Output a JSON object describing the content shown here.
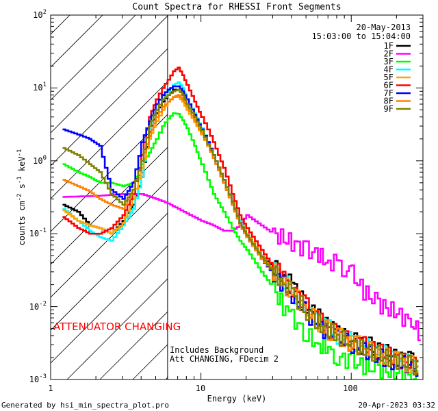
{
  "chart_data": {
    "type": "line",
    "title": "Count Spectra for RHESSI Front Segments",
    "xlabel": "Energy (keV)",
    "ylabel": "counts cm",
    "ylabel_exp1": "-2",
    "ylabel_mid": " s",
    "ylabel_exp2": "-1",
    "ylabel_end": " keV",
    "ylabel_exp3": "-1",
    "xscale": "log",
    "yscale": "log",
    "xlim": [
      1,
      300
    ],
    "ylim": [
      0.001,
      100
    ],
    "x_ticks": [
      {
        "value": 1,
        "label": "1"
      },
      {
        "value": 10,
        "label": "10"
      },
      {
        "value": 100,
        "label": "100"
      }
    ],
    "y_ticks": [
      {
        "value": 0.001,
        "base": "10",
        "exp": "-3"
      },
      {
        "value": 0.01,
        "base": "10",
        "exp": "-2"
      },
      {
        "value": 0.1,
        "base": "10",
        "exp": "-1"
      },
      {
        "value": 1,
        "base": "10",
        "exp": "0"
      },
      {
        "value": 10,
        "base": "10",
        "exp": "1"
      },
      {
        "value": 100,
        "base": "10",
        "exp": "2"
      }
    ],
    "date": "20-May-2013",
    "time_range": "15:03:00 to 15:04:00",
    "attenuator_energy": 6,
    "attenuator_label": "ATTENUATOR CHANGING",
    "note_line1": "Includes Background",
    "note_line2": "Att CHANGING, FDecim 2",
    "series": [
      {
        "name": "1F",
        "color": "#000000",
        "x": [
          1.2,
          1.5,
          1.8,
          2.1,
          2.5,
          3.0,
          3.5,
          4.0,
          4.5,
          5.0,
          5.5,
          6.0,
          6.5,
          7.0,
          7.5,
          8,
          9,
          10,
          11,
          12,
          14,
          16,
          18,
          20,
          25,
          30,
          35,
          40,
          50,
          60,
          70,
          80,
          100,
          120,
          150,
          200,
          250,
          280
        ],
        "values": [
          0.25,
          0.2,
          0.13,
          0.12,
          0.1,
          0.15,
          0.25,
          0.6,
          2.5,
          4.5,
          6.5,
          8,
          9.5,
          9.5,
          8,
          6,
          4,
          2.6,
          1.7,
          1.1,
          0.5,
          0.25,
          0.14,
          0.1,
          0.05,
          0.035,
          0.025,
          0.02,
          0.01,
          0.007,
          0.005,
          0.0045,
          0.0035,
          0.0032,
          0.0025,
          0.002,
          0.0018,
          0.0015
        ]
      },
      {
        "name": "2F",
        "color": "#ff00ff",
        "x": [
          1.2,
          2,
          3,
          4,
          5,
          6,
          7,
          8,
          10,
          12,
          14,
          16,
          18,
          20,
          25,
          30,
          40,
          50,
          60,
          70,
          80,
          90,
          100,
          120,
          150,
          200,
          250,
          290
        ],
        "values": [
          0.32,
          0.33,
          0.35,
          0.35,
          0.3,
          0.26,
          0.22,
          0.19,
          0.15,
          0.13,
          0.11,
          0.11,
          0.13,
          0.18,
          0.13,
          0.1,
          0.075,
          0.06,
          0.05,
          0.04,
          0.04,
          0.032,
          0.028,
          0.016,
          0.011,
          0.008,
          0.006,
          0.004
        ]
      },
      {
        "name": "3F",
        "color": "#00ff00",
        "x": [
          1.2,
          1.5,
          1.8,
          2.1,
          2.5,
          3.0,
          3.5,
          4.0,
          4.5,
          5.0,
          5.5,
          6.0,
          6.5,
          7.0,
          7.5,
          8,
          9,
          10,
          11,
          12,
          14,
          16,
          18,
          20,
          25,
          30,
          35,
          40,
          50,
          60,
          70,
          80,
          100,
          120,
          150,
          200,
          250,
          280
        ],
        "values": [
          0.9,
          0.7,
          0.6,
          0.5,
          0.5,
          0.45,
          0.5,
          0.9,
          1.3,
          2,
          3,
          3.8,
          4.5,
          4.4,
          3.6,
          2.8,
          1.6,
          0.9,
          0.55,
          0.35,
          0.2,
          0.12,
          0.08,
          0.06,
          0.03,
          0.018,
          0.01,
          0.007,
          0.004,
          0.003,
          0.0025,
          0.002,
          0.0018,
          0.0015,
          0.0014,
          0.0012,
          0.0011,
          0.001
        ]
      },
      {
        "name": "4F",
        "color": "#00ffff",
        "x": [
          1.2,
          1.5,
          1.8,
          2.1,
          2.5,
          3.0,
          3.5,
          4.0,
          4.5,
          5.0,
          5.5,
          6.0,
          6.5,
          7.0,
          7.5,
          8,
          9,
          10,
          11,
          12,
          14,
          16,
          18,
          20,
          25,
          30,
          35,
          40,
          50,
          60,
          70,
          80,
          100,
          120,
          150,
          200,
          250,
          280
        ],
        "values": [
          0.22,
          0.15,
          0.11,
          0.09,
          0.08,
          0.13,
          0.22,
          0.6,
          2.8,
          5,
          7,
          9,
          11,
          12,
          10,
          7,
          4.5,
          2.8,
          1.8,
          1.2,
          0.55,
          0.28,
          0.15,
          0.1,
          0.05,
          0.03,
          0.022,
          0.016,
          0.009,
          0.006,
          0.005,
          0.004,
          0.0033,
          0.003,
          0.0024,
          0.0019,
          0.0016,
          0.0014
        ]
      },
      {
        "name": "5F",
        "color": "#ffa500",
        "x": [
          1.2,
          1.5,
          1.8,
          2.1,
          2.5,
          3.0,
          3.5,
          4.0,
          4.5,
          5.0,
          5.5,
          6.0,
          6.5,
          7.0,
          7.5,
          8,
          9,
          10,
          11,
          12,
          14,
          16,
          18,
          20,
          25,
          30,
          35,
          40,
          50,
          60,
          70,
          80,
          100,
          120,
          150,
          200,
          250,
          280
        ],
        "values": [
          0.21,
          0.15,
          0.13,
          0.12,
          0.1,
          0.14,
          0.3,
          0.8,
          2,
          3.5,
          5,
          6.5,
          7.5,
          7.5,
          6.5,
          5,
          3.4,
          2.3,
          1.6,
          1.1,
          0.5,
          0.25,
          0.14,
          0.1,
          0.05,
          0.032,
          0.022,
          0.016,
          0.009,
          0.006,
          0.0048,
          0.004,
          0.0032,
          0.0028,
          0.0022,
          0.0018,
          0.0016,
          0.0014
        ]
      },
      {
        "name": "6F",
        "color": "#ff0000",
        "x": [
          1.2,
          1.5,
          1.8,
          2.1,
          2.5,
          3.0,
          3.5,
          4.0,
          4.5,
          5.0,
          5.5,
          6.0,
          6.5,
          7.0,
          7.5,
          8,
          9,
          10,
          11,
          12,
          14,
          16,
          18,
          20,
          25,
          30,
          35,
          40,
          50,
          60,
          70,
          80,
          100,
          120,
          150,
          200,
          250,
          280
        ],
        "values": [
          0.17,
          0.12,
          0.1,
          0.1,
          0.12,
          0.18,
          0.35,
          1.2,
          4,
          7,
          10,
          13,
          17,
          19,
          15,
          11,
          6.5,
          4,
          2.7,
          1.8,
          0.8,
          0.35,
          0.18,
          0.12,
          0.06,
          0.035,
          0.025,
          0.018,
          0.01,
          0.0065,
          0.005,
          0.0042,
          0.0033,
          0.0029,
          0.0024,
          0.0019,
          0.0017,
          0.0015
        ]
      },
      {
        "name": "7F",
        "color": "#0000ff",
        "x": [
          1.2,
          1.5,
          1.8,
          2.1,
          2.5,
          3.0,
          3.5,
          4.0,
          4.5,
          5.0,
          5.5,
          6.0,
          6.5,
          7.0,
          7.5,
          8,
          9,
          10,
          11,
          12,
          14,
          16,
          18,
          20,
          25,
          30,
          35,
          40,
          50,
          60,
          70,
          80,
          100,
          120,
          150,
          200,
          250,
          280
        ],
        "values": [
          2.7,
          2.3,
          2,
          1.6,
          0.4,
          0.3,
          0.5,
          1.8,
          3.5,
          6,
          8,
          9.5,
          10.5,
          10.5,
          9,
          7,
          4.3,
          2.7,
          1.8,
          1.2,
          0.55,
          0.27,
          0.14,
          0.09,
          0.045,
          0.028,
          0.02,
          0.014,
          0.008,
          0.0055,
          0.0043,
          0.0037,
          0.003,
          0.0026,
          0.0021,
          0.0017,
          0.0015,
          0.0013
        ]
      },
      {
        "name": "8F",
        "color": "#ff7f00",
        "x": [
          1.2,
          1.5,
          1.8,
          2.1,
          2.5,
          3.0,
          3.5,
          4.0,
          4.5,
          5.0,
          5.5,
          6.0,
          6.5,
          7.0,
          7.5,
          8,
          9,
          10,
          11,
          12,
          14,
          16,
          18,
          20,
          25,
          30,
          35,
          40,
          50,
          60,
          70,
          80,
          100,
          120,
          150,
          200,
          250,
          280
        ],
        "values": [
          0.55,
          0.45,
          0.38,
          0.3,
          0.25,
          0.22,
          0.4,
          1,
          2.2,
          4,
          5.5,
          6.5,
          7.5,
          8,
          7,
          5.5,
          3.6,
          2.4,
          1.6,
          1.1,
          0.5,
          0.25,
          0.13,
          0.09,
          0.045,
          0.03,
          0.021,
          0.015,
          0.0085,
          0.006,
          0.0046,
          0.0039,
          0.0031,
          0.0027,
          0.0022,
          0.0018,
          0.0016,
          0.0014
        ]
      },
      {
        "name": "9F",
        "color": "#808000",
        "x": [
          1.2,
          1.5,
          1.8,
          2.1,
          2.5,
          3.0,
          3.5,
          4.0,
          4.5,
          5.0,
          5.5,
          6.0,
          6.5,
          7.0,
          7.5,
          8,
          9,
          10,
          11,
          12,
          14,
          16,
          18,
          20,
          25,
          30,
          35,
          40,
          50,
          60,
          70,
          80,
          100,
          120,
          150,
          200,
          250,
          280
        ],
        "values": [
          1.5,
          1.2,
          0.9,
          0.7,
          0.35,
          0.25,
          0.4,
          1,
          3,
          5,
          7,
          8,
          9,
          9.5,
          8,
          6,
          4,
          2.6,
          1.7,
          1.2,
          0.55,
          0.27,
          0.14,
          0.095,
          0.048,
          0.03,
          0.021,
          0.015,
          0.0085,
          0.006,
          0.0046,
          0.0039,
          0.0031,
          0.0027,
          0.0022,
          0.0018,
          0.0016,
          0.0014
        ]
      }
    ]
  },
  "footer": {
    "generated_by": "Generated by hsi_min_spectra_plot.pro",
    "timestamp": "20-Apr-2023 03:32"
  }
}
